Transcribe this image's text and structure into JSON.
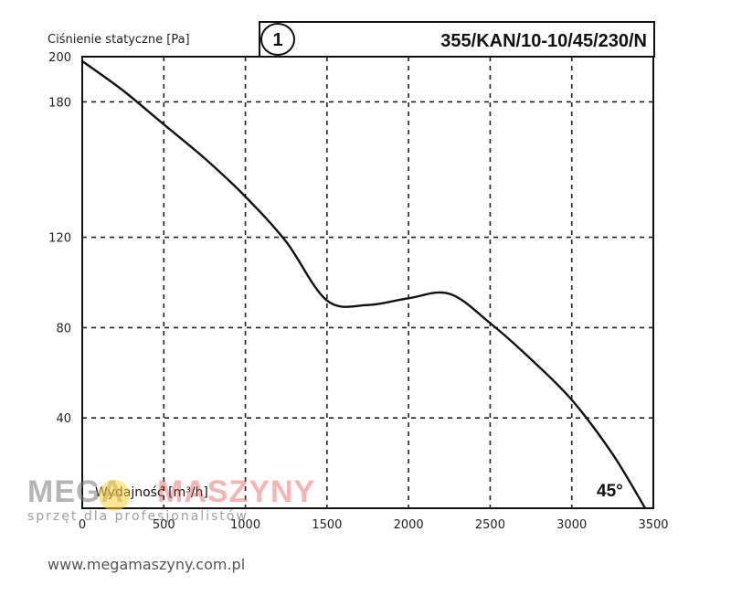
{
  "chart_data": {
    "type": "line",
    "ylabel": "Ciśnienie statyczne [Pa]",
    "xlabel": "Wydajność [m³/h]",
    "badge": "1",
    "model": "355/KAN/10-10/45/230/N",
    "annotation": "45°",
    "xlim": [
      0,
      3500
    ],
    "ylim": [
      0,
      200
    ],
    "x_ticks": [
      "0",
      "500",
      "1000",
      "1500",
      "2000",
      "2500",
      "3000",
      "3500"
    ],
    "y_ticks": [
      "40",
      "80",
      "120",
      "180",
      "200"
    ],
    "grid": true,
    "series": [
      {
        "x": [
          0,
          250,
          500,
          750,
          1000,
          1250,
          1500,
          1750,
          2000,
          2250,
          2500,
          2750,
          3000,
          3250,
          3450
        ],
        "values": [
          198,
          185,
          170,
          155,
          138,
          118,
          92,
          90,
          93,
          95,
          82,
          66,
          48,
          24,
          0
        ]
      }
    ]
  },
  "watermark": {
    "brand_left": "MEGA",
    "brand_right": "MASZYNY",
    "tagline": "sprzęt dla profesjonalistów"
  },
  "site_url": "www.megamaszyny.com.pl"
}
